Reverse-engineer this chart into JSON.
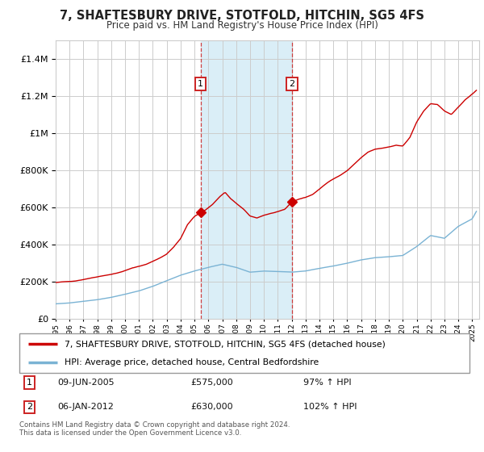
{
  "title": "7, SHAFTESBURY DRIVE, STOTFOLD, HITCHIN, SG5 4FS",
  "subtitle": "Price paid vs. HM Land Registry's House Price Index (HPI)",
  "legend_line1": "7, SHAFTESBURY DRIVE, STOTFOLD, HITCHIN, SG5 4FS (detached house)",
  "legend_line2": "HPI: Average price, detached house, Central Bedfordshire",
  "sale1_date": 2005.44,
  "sale1_price": 575000,
  "sale1_label": "1",
  "sale1_text": "09-JUN-2005",
  "sale1_pct": "97% ↑ HPI",
  "sale2_date": 2012.02,
  "sale2_price": 630000,
  "sale2_label": "2",
  "sale2_text": "06-JAN-2012",
  "sale2_pct": "102% ↑ HPI",
  "footer": "Contains HM Land Registry data © Crown copyright and database right 2024.\nThis data is licensed under the Open Government Licence v3.0.",
  "xmin": 1995,
  "xmax": 2025.5,
  "ymin": 0,
  "ymax": 1500000,
  "red_color": "#cc0000",
  "blue_color": "#7ab3d4",
  "shade_color": "#daeef7",
  "marker_box_color": "#cc2222",
  "grid_color": "#cccccc",
  "bg_color": "#ffffff"
}
